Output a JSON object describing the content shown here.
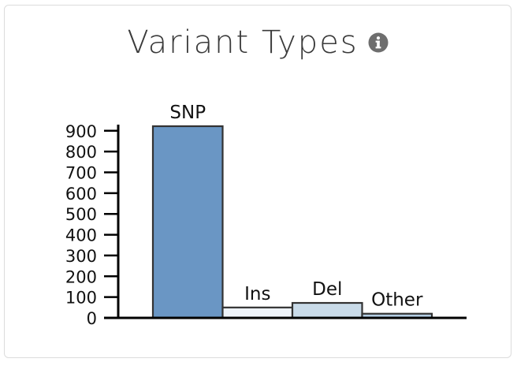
{
  "card": {
    "title": "Variant Types",
    "info_icon": "info-circle-icon"
  },
  "colors": {
    "title": "#3a3a3a",
    "icon": "#6e6e6e",
    "bar_stroke": "#333333",
    "axis": "#000000"
  },
  "chart_data": {
    "type": "bar",
    "title": "Variant Types",
    "xlabel": "",
    "ylabel": "",
    "categories": [
      "SNP",
      "Ins",
      "Del",
      "Other"
    ],
    "values": [
      922,
      50,
      72,
      20
    ],
    "bar_colors": [
      "#6a96c4",
      "#eef3f9",
      "#c9dbe9",
      "#b3cde3"
    ],
    "ylim": [
      0,
      922
    ],
    "yticks": [
      0,
      100,
      200,
      300,
      400,
      500,
      600,
      700,
      800,
      900
    ],
    "grid": false,
    "legend": "none",
    "data_labels": true
  }
}
